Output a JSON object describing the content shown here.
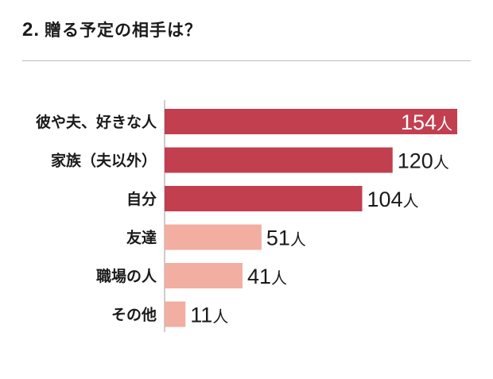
{
  "header": {
    "number": "2.",
    "title": "贈る予定の相手は？"
  },
  "colors": {
    "primary": "#c23f50",
    "secondary": "#f2aea1",
    "axis": "#9a9a9a"
  },
  "chart_data": {
    "type": "bar",
    "orientation": "horizontal",
    "categories": [
      "彼や夫、好きな人",
      "家族（夫以外）",
      "自分",
      "友達",
      "職場の人",
      "その他"
    ],
    "values": [
      154,
      120,
      104,
      51,
      41,
      11
    ],
    "value_labels": [
      "154人",
      "120人",
      "104人",
      "51人",
      "41人",
      "11人"
    ],
    "label_suffix": "人",
    "highlight_top_n": 3,
    "xlim": [
      0,
      160
    ]
  }
}
